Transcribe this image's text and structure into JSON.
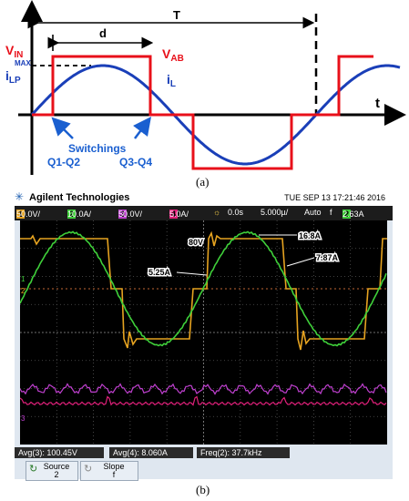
{
  "panel_a": {
    "caption": "(a)",
    "labels": {
      "period": "T",
      "width": "d",
      "vin_main": "V",
      "vin_sub": "IN",
      "vab_main": "V",
      "vab_sub": "AB",
      "ilp_main": "i",
      "ilp_sub": "LP",
      "ilp_sup": "MAX",
      "il_main": "i",
      "il_sub": "L",
      "time": "t",
      "switchings": "Switchings",
      "q12": "Q1-Q2",
      "q34": "Q3-Q4"
    },
    "colors": {
      "vab": "#e8101a",
      "il": "#1a3fb8",
      "annotation": "#1a5fd0"
    }
  },
  "panel_b": {
    "caption": "(b)",
    "brand": "Agilent Technologies",
    "datetime": "TUE SEP 13 17:21:46 2016",
    "settings": {
      "ch1_num": "1",
      "ch1_scale": "50.0V/",
      "ch2_num": "2",
      "ch2_scale": "10.0A/",
      "ch3_num": "3",
      "ch3_scale": "50.0V/",
      "ch4_num": "4",
      "ch4_scale": "5.0A/",
      "delay": "0.0s",
      "timebase": "5.000µ/",
      "trigger_mode": "Auto",
      "trigger_symbol": "f",
      "trigger_ch": "2",
      "trigger_level": "2.63A"
    },
    "annotations": {
      "v80": "80V",
      "a168": "16.8A",
      "a787": "7.87A",
      "a525": "5.25A"
    },
    "markers": {
      "m1": "1",
      "m2": "2",
      "m3": "3"
    },
    "measurements": {
      "avg3": "Avg(3): 100.45V",
      "avg4": "Avg(4): 8.060A",
      "freq2": "Freq(2): 37.7kHz"
    },
    "softkeys": {
      "source_label": "Source",
      "source_value": "2",
      "slope_label": "Slope",
      "slope_value": "f"
    },
    "colors": {
      "ch1": "#e6a320",
      "ch2": "#3fd03a",
      "ch3": "#c040d0",
      "ch4": "#e0207a"
    }
  }
}
